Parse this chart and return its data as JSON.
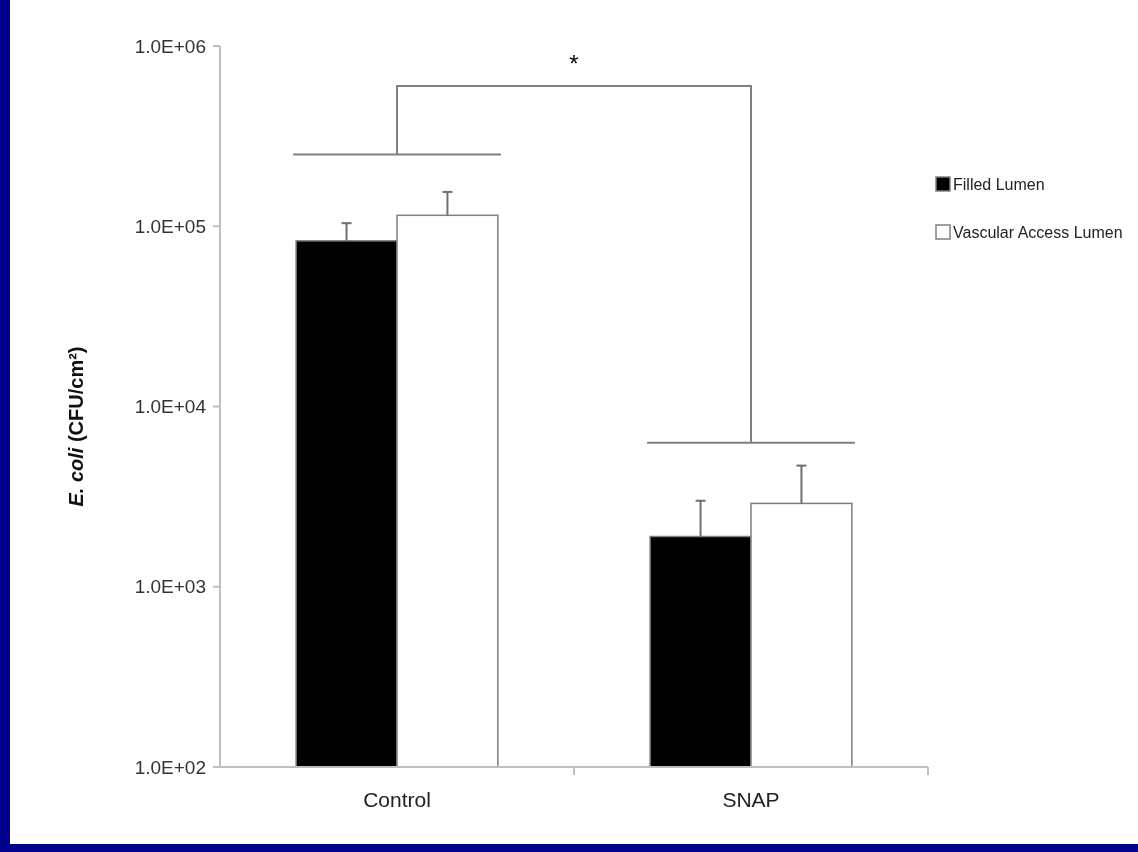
{
  "chart_data": {
    "type": "bar",
    "ylabel": "E. coli (CFU/cm²)",
    "categories": [
      "Control",
      "SNAP"
    ],
    "series": [
      {
        "name": "Filled Lumen",
        "color": "#000000",
        "values": [
          83000,
          1900
        ],
        "errors": [
          [
            83000,
            104000
          ],
          [
            1900,
            3000
          ]
        ]
      },
      {
        "name": "Vascular Access Lumen",
        "color": "#ffffff",
        "values": [
          115000,
          2900
        ],
        "errors": [
          [
            115000,
            155000
          ],
          [
            2900,
            4700
          ]
        ]
      }
    ],
    "log": true,
    "ylim": [
      100,
      1000000
    ],
    "yticks": [
      {
        "value": 100,
        "label": "1.0E+02"
      },
      {
        "value": 1000,
        "label": "1.0E+03"
      },
      {
        "value": 10000,
        "label": "1.0E+04"
      },
      {
        "value": 100000,
        "label": "1.0E+05"
      },
      {
        "value": 1000000,
        "label": "1.0E+06"
      }
    ],
    "grid": false,
    "legend": "right",
    "annotations": [
      "*"
    ]
  }
}
